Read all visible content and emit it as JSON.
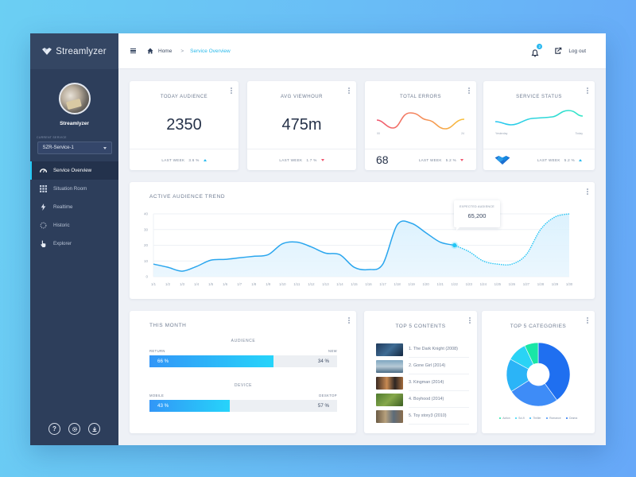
{
  "app": {
    "brand_name": "Streamlyzer"
  },
  "sidebar": {
    "profile_name": "Streamlyzer",
    "service_label": "CURRENT SERVICE",
    "service_value": "SZR-Service-1",
    "items": [
      {
        "label": "Service Overview",
        "icon": "gauge-icon",
        "active": true
      },
      {
        "label": "Situation Room",
        "icon": "grid-icon",
        "active": false
      },
      {
        "label": "Realtime",
        "icon": "lightning-icon",
        "active": false
      },
      {
        "label": "Historic",
        "icon": "dotted-circle-icon",
        "active": false
      },
      {
        "label": "Explorer",
        "icon": "pointer-hand-icon",
        "active": false
      }
    ],
    "footer_buttons": [
      "help-icon",
      "settings-icon",
      "download-icon"
    ]
  },
  "topbar": {
    "breadcrumb_home": "Home",
    "breadcrumb_separator": ">",
    "breadcrumb_current": "Service Overview",
    "notification_count": "2",
    "logout_label": "Log out"
  },
  "kpis": {
    "today_audience": {
      "title": "TODAY AUDIENCE",
      "value": "2350",
      "footer_label": "LAST WEEK",
      "change": "3.6 %",
      "direction": "up"
    },
    "avg_viewhour": {
      "title": "AVG VIEWHOUR",
      "value": "475m",
      "footer_label": "LAST WEEK",
      "change": "1.7 %",
      "direction": "down"
    },
    "total_errors": {
      "title": "TOTAL ERRORS",
      "value": "68",
      "axis_start": "00",
      "axis_end": "24",
      "footer_label": "LAST WEEK",
      "change": "5.2 %",
      "direction": "down"
    },
    "service_status": {
      "title": "SERVICE STATUS",
      "axis_start": "Yesterday",
      "axis_end": "Today",
      "footer_label": "LAST WEEK",
      "change": "5.2 %",
      "direction": "up"
    }
  },
  "trend": {
    "title": "ACTIVE AUDIENCE TREND",
    "tooltip_label": "EXPECTED AUDIENCE",
    "tooltip_value": "65,200"
  },
  "this_month": {
    "title": "THIS MONTH",
    "audience": {
      "heading": "AUDIENCE",
      "left_label": "RETURN",
      "right_label": "NEW",
      "left_value": "66 %",
      "right_value": "34 %",
      "fill_pct": 66
    },
    "device": {
      "heading": "DEVICE",
      "left_label": "MOBILE",
      "right_label": "DESKTOP",
      "left_value": "43 %",
      "right_value": "57 %",
      "fill_pct": 43
    }
  },
  "top_contents": {
    "title": "TOP 5 CONTENTS",
    "items": [
      {
        "label": "1. The Dark Knight (2008)"
      },
      {
        "label": "2. Gone Girl (2014)"
      },
      {
        "label": "3. Kingman (2014)"
      },
      {
        "label": "4. Boyhood (2014)"
      },
      {
        "label": "5. Toy story3 (2010)"
      }
    ]
  },
  "top_categories": {
    "title": "TOP 5 CATEGORIES",
    "legend": [
      {
        "label": "Action",
        "color": "#19e6a6"
      },
      {
        "label": "Sci-fi",
        "color": "#2ad3f5"
      },
      {
        "label": "Thriller",
        "color": "#2bb4f7"
      },
      {
        "label": "Romance",
        "color": "#3e8cf7"
      },
      {
        "label": "Drama",
        "color": "#1f6ff0"
      }
    ]
  },
  "colors": {
    "accent": "#27b9ef",
    "sidebar_bg": "#2d3e5b",
    "negative": "#f0566f"
  },
  "chart_data": [
    {
      "type": "line",
      "title": "ACTIVE AUDIENCE TREND",
      "x": [
        "1/1",
        "1/2",
        "1/3",
        "1/4",
        "1/5",
        "1/6",
        "1/7",
        "1/8",
        "1/9",
        "1/10",
        "1/11",
        "1/12",
        "1/13",
        "1/14",
        "1/15",
        "1/16",
        "1/17",
        "1/18",
        "1/19",
        "1/20",
        "1/21",
        "1/22",
        "1/23",
        "1/24",
        "1/25",
        "1/26",
        "1/27",
        "1/28",
        "1/29",
        "1/30"
      ],
      "series": [
        {
          "name": "Actual",
          "values": [
            8,
            6,
            3.5,
            6.5,
            10.5,
            11,
            12,
            13,
            14,
            21,
            22,
            19,
            15,
            14,
            6,
            4.5,
            8,
            33,
            34,
            28,
            22,
            20,
            null,
            null,
            null,
            null,
            null,
            null,
            null,
            null
          ]
        },
        {
          "name": "Expected",
          "style": "dotted",
          "values": [
            null,
            null,
            null,
            null,
            null,
            null,
            null,
            null,
            null,
            null,
            null,
            null,
            null,
            null,
            null,
            null,
            null,
            null,
            null,
            null,
            null,
            20,
            16,
            10,
            8,
            8,
            14,
            30,
            38,
            40
          ]
        }
      ],
      "yticks": [
        0,
        10,
        20,
        30,
        40
      ],
      "ylim": [
        0,
        40
      ],
      "xlabel": "",
      "ylabel": "",
      "grid": true,
      "annotations": [
        {
          "x": "1/22",
          "label": "EXPECTED AUDIENCE",
          "value": "65,200"
        }
      ]
    },
    {
      "type": "line",
      "title": "TOTAL ERRORS",
      "x_labels": [
        "00",
        "24"
      ],
      "values": [
        6,
        2,
        9,
        7,
        2,
        7
      ],
      "color_gradient": [
        "#f0566f",
        "#f8c13b"
      ]
    },
    {
      "type": "line",
      "title": "SERVICE STATUS",
      "x_labels": [
        "Yesterday",
        "Today"
      ],
      "values": [
        4,
        3,
        5,
        5.5,
        8,
        6
      ],
      "color_gradient": [
        "#27c6f1",
        "#34e6c6"
      ]
    },
    {
      "type": "pie",
      "title": "TOP 5 CATEGORIES",
      "categories": [
        "Action",
        "Sci-fi",
        "Thriller",
        "Romance",
        "Drama"
      ],
      "values": [
        7,
        10,
        17,
        26,
        40
      ],
      "donut": true,
      "legend_position": "bottom"
    }
  ]
}
